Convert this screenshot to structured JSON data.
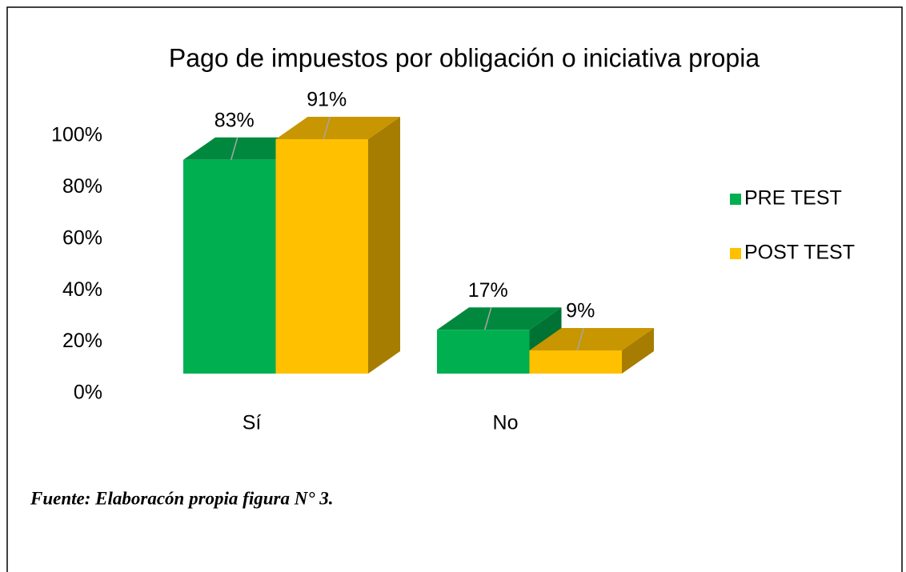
{
  "chart_data": {
    "type": "bar3d",
    "title": "Pago de impuestos por obligación o iniciativa propia",
    "categories": [
      "Sí",
      "No"
    ],
    "series": [
      {
        "name": "PRE TEST",
        "color": "#00b050",
        "values": [
          83,
          17
        ],
        "value_labels": [
          "83%",
          "17%"
        ]
      },
      {
        "name": "POST TEST",
        "color": "#ffc000",
        "values": [
          91,
          9
        ],
        "value_labels": [
          "91%",
          "9%"
        ]
      }
    ],
    "ylim": [
      0,
      100
    ],
    "yticks": [
      {
        "value": 0,
        "label": "0%"
      },
      {
        "value": 20,
        "label": "20%"
      },
      {
        "value": 40,
        "label": "40%"
      },
      {
        "value": 60,
        "label": "60%"
      },
      {
        "value": 80,
        "label": "80%"
      },
      {
        "value": 100,
        "label": "100%"
      }
    ],
    "legend": "right",
    "source": "Fuente: Elaboracón propia figura N° 3."
  }
}
